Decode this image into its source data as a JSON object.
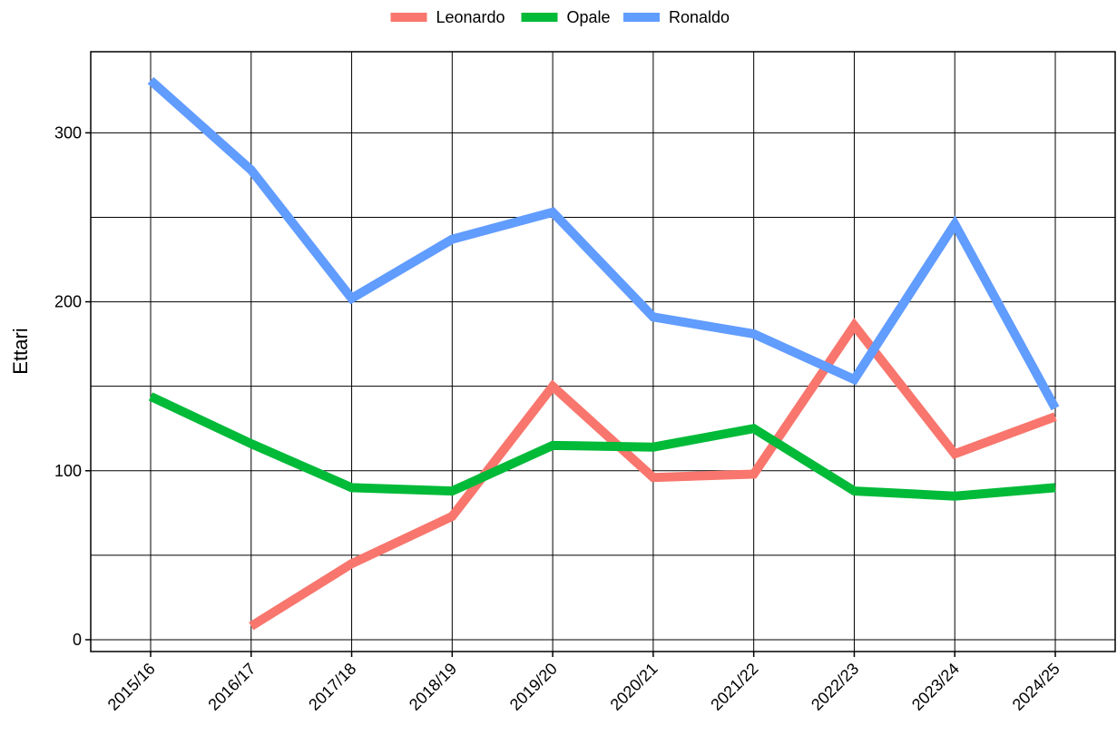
{
  "chart_data": {
    "type": "line",
    "y_label": "Ettari",
    "categories": [
      "2015/16",
      "2016/17",
      "2017/18",
      "2018/19",
      "2019/20",
      "2020/21",
      "2021/22",
      "2022/23",
      "2023/24",
      "2024/25"
    ],
    "series": [
      {
        "name": "Leonardo",
        "color": "#f8766d",
        "values": [
          null,
          8,
          45,
          73,
          150,
          96,
          98,
          186,
          110,
          132
        ]
      },
      {
        "name": "Opale",
        "color": "#00ba38",
        "values": [
          144,
          116,
          90,
          88,
          115,
          114,
          125,
          88,
          85,
          90
        ]
      },
      {
        "name": "Ronaldo",
        "color": "#619cff",
        "values": [
          331,
          278,
          202,
          237,
          253,
          191,
          181,
          154,
          246,
          137
        ]
      }
    ],
    "ylim": [
      -7,
      348
    ],
    "yticks": [
      0,
      100,
      200,
      300
    ],
    "minor_yticks": [
      50,
      150,
      250
    ],
    "grid": true,
    "legend": "top"
  }
}
